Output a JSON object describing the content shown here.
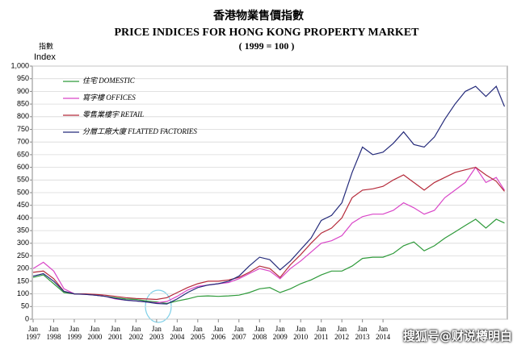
{
  "chart_data": {
    "type": "line",
    "title_zh": "香港物業售價指數",
    "title": "PRICE INDICES FOR HONG KONG PROPERTY MARKET",
    "subtitle": "( 1999 = 100 )",
    "ylabel_zh": "指數",
    "ylabel": "Index",
    "watermark": "搜狐号@财说樽明白",
    "x": [
      1997,
      1997.5,
      1998,
      1998.5,
      1999,
      1999.5,
      2000,
      2000.5,
      2001,
      2001.5,
      2002,
      2002.5,
      2003,
      2003.5,
      2004,
      2004.5,
      2005,
      2005.5,
      2006,
      2006.5,
      2007,
      2007.5,
      2008,
      2008.5,
      2009,
      2009.5,
      2010,
      2010.5,
      2011,
      2011.5,
      2012,
      2012.5,
      2013,
      2013.5,
      2014,
      2014.5,
      2015,
      2015.5,
      2016,
      2016.5,
      2017,
      2017.5,
      2018,
      2018.5,
      2019,
      2019.5,
      2019.9
    ],
    "series": [
      {
        "name": "住宅 DOMESTIC",
        "color": "#2e9a3a",
        "values": [
          165,
          175,
          140,
          105,
          100,
          100,
          95,
          90,
          85,
          80,
          78,
          72,
          68,
          62,
          72,
          80,
          90,
          92,
          90,
          92,
          95,
          105,
          120,
          125,
          105,
          120,
          140,
          155,
          175,
          190,
          190,
          210,
          240,
          245,
          245,
          260,
          290,
          305,
          270,
          290,
          320,
          345,
          370,
          395,
          360,
          395,
          380
        ]
      },
      {
        "name": "寫字樓 OFFICES",
        "color": "#d946c8",
        "values": [
          200,
          225,
          190,
          120,
          100,
          98,
          95,
          90,
          80,
          75,
          72,
          68,
          65,
          70,
          90,
          115,
          130,
          135,
          140,
          145,
          160,
          180,
          200,
          190,
          160,
          200,
          230,
          265,
          300,
          310,
          330,
          380,
          405,
          415,
          415,
          430,
          460,
          440,
          415,
          430,
          480,
          510,
          540,
          600,
          540,
          560,
          510
        ]
      },
      {
        "name": "零售業樓宇 RETAIL",
        "color": "#b52a3a",
        "values": [
          185,
          190,
          160,
          110,
          100,
          100,
          98,
          95,
          90,
          85,
          82,
          80,
          78,
          85,
          105,
          125,
          140,
          150,
          150,
          155,
          165,
          185,
          210,
          200,
          165,
          215,
          255,
          300,
          340,
          360,
          400,
          480,
          510,
          515,
          525,
          550,
          570,
          540,
          510,
          540,
          560,
          580,
          590,
          600,
          570,
          545,
          505
        ]
      },
      {
        "name": "分層工廠大廈 FLATTED FACTORIES",
        "color": "#242a7a",
        "values": [
          170,
          180,
          150,
          110,
          100,
          98,
          95,
          90,
          82,
          75,
          72,
          68,
          62,
          60,
          80,
          105,
          125,
          135,
          140,
          150,
          170,
          210,
          245,
          235,
          195,
          230,
          275,
          320,
          390,
          410,
          460,
          580,
          680,
          650,
          660,
          695,
          740,
          690,
          680,
          720,
          790,
          850,
          900,
          920,
          880,
          920,
          840
        ]
      }
    ],
    "xlim": [
      1997,
      2020
    ],
    "xticks": [
      {
        "value": 1997,
        "label": "Jan 1997"
      },
      {
        "value": 1998,
        "label": "Jan 1998"
      },
      {
        "value": 1999,
        "label": "Jan 1999"
      },
      {
        "value": 2000,
        "label": "Jan 2000"
      },
      {
        "value": 2001,
        "label": "Jan 2001"
      },
      {
        "value": 2002,
        "label": "Jan 2002"
      },
      {
        "value": 2003,
        "label": "Jan 2003"
      },
      {
        "value": 2004,
        "label": "Jan 2004"
      },
      {
        "value": 2005,
        "label": "Jan 2005"
      },
      {
        "value": 2006,
        "label": "Jan 2006"
      },
      {
        "value": 2007,
        "label": "Jan 2007"
      },
      {
        "value": 2008,
        "label": "Jan 2008"
      },
      {
        "value": 2009,
        "label": "Jan 2009"
      },
      {
        "value": 2010,
        "label": "Jan 2010"
      },
      {
        "value": 2011,
        "label": "Jan 2011"
      },
      {
        "value": 2012,
        "label": "Jan 2012"
      },
      {
        "value": 2013,
        "label": "Jan 2013"
      },
      {
        "value": 2014,
        "label": "Jan 2014"
      }
    ],
    "ylim": [
      0,
      1000
    ],
    "yticks": [
      0,
      50,
      100,
      150,
      200,
      250,
      300,
      350,
      400,
      450,
      500,
      550,
      600,
      650,
      700,
      750,
      800,
      850,
      900,
      950,
      {
        "value": 1000,
        "label": "1,000"
      }
    ],
    "grid": true,
    "legend": "upper left"
  }
}
